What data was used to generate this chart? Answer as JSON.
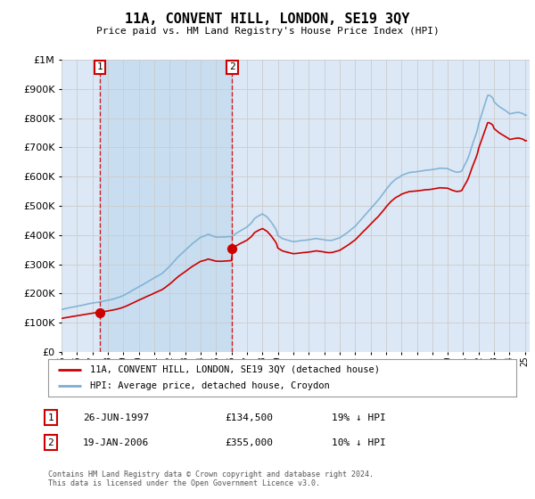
{
  "title": "11A, CONVENT HILL, LONDON, SE19 3QY",
  "subtitle": "Price paid vs. HM Land Registry's House Price Index (HPI)",
  "legend_line1": "11A, CONVENT HILL, LONDON, SE19 3QY (detached house)",
  "legend_line2": "HPI: Average price, detached house, Croydon",
  "annotation1_label": "1",
  "annotation1_date": "26-JUN-1997",
  "annotation1_price": "£134,500",
  "annotation1_hpi": "19% ↓ HPI",
  "annotation2_label": "2",
  "annotation2_date": "19-JAN-2006",
  "annotation2_price": "£355,000",
  "annotation2_hpi": "10% ↓ HPI",
  "footer": "Contains HM Land Registry data © Crown copyright and database right 2024.\nThis data is licensed under the Open Government Licence v3.0.",
  "sale1_year": 1997.49,
  "sale1_value": 134500,
  "sale2_year": 2006.05,
  "sale2_value": 355000,
  "hpi_color": "#7bafd4",
  "price_color": "#cc0000",
  "dashed_line_color": "#cc0000",
  "background_color": "#ffffff",
  "plot_bg_color": "#dce8f5",
  "shade_bg_color": "#c8ddf0",
  "grid_color": "#cccccc",
  "ylim_min": 0,
  "ylim_max": 1000000,
  "xmin": 1995.0,
  "xmax": 2025.3
}
